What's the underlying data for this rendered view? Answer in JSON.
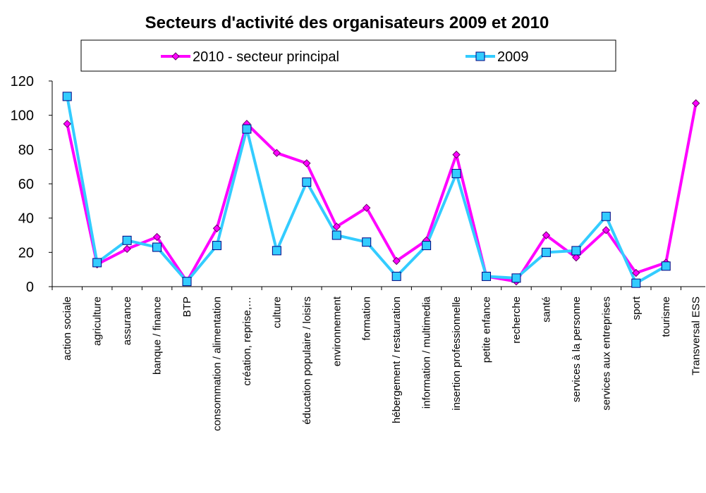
{
  "chart_data": {
    "type": "line",
    "title": "Secteurs d'activité des organisateurs 2009 et 2010",
    "categories": [
      "action sociale",
      "agriculture",
      "assurance",
      "banque / finance",
      "BTP",
      "consommation / alimentation",
      "création, reprise,…",
      "culture",
      "éducation populaire / loisirs",
      "environnement",
      "formation",
      "hébergement / restauration",
      "information / multimedia",
      "insertion professionnelle",
      "petite enfance",
      "recherche",
      "santé",
      "services à la personne",
      "services aux entreprises",
      "sport",
      "tourisme",
      "Transversal ESS"
    ],
    "series": [
      {
        "name": "2010 - secteur principal",
        "color": "#ff00ff",
        "marker": "diamond",
        "values": [
          95,
          13,
          22,
          29,
          3,
          34,
          95,
          78,
          72,
          35,
          46,
          15,
          27,
          77,
          6,
          3,
          30,
          17,
          33,
          8,
          14,
          107
        ]
      },
      {
        "name": "2009",
        "color": "#33ccff",
        "marker": "square",
        "values": [
          111,
          14,
          27,
          23,
          3,
          24,
          92,
          21,
          61,
          30,
          26,
          6,
          24,
          66,
          6,
          5,
          20,
          21,
          41,
          2,
          12,
          null
        ]
      }
    ],
    "ylim": [
      0,
      120
    ],
    "yticks": [
      0,
      20,
      40,
      60,
      80,
      100,
      120
    ],
    "grid": false,
    "legend": "top"
  }
}
